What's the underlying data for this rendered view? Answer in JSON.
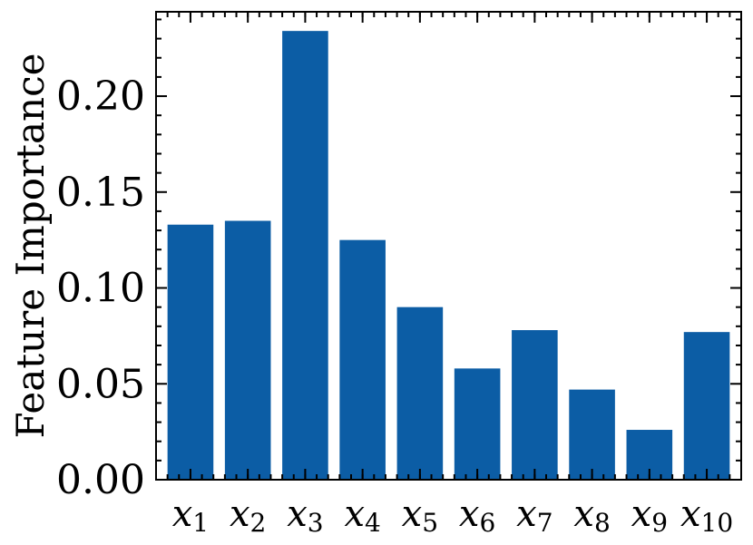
{
  "chart_data": {
    "type": "bar",
    "categories": [
      {
        "base": "x",
        "sub": "1"
      },
      {
        "base": "x",
        "sub": "2"
      },
      {
        "base": "x",
        "sub": "3"
      },
      {
        "base": "x",
        "sub": "4"
      },
      {
        "base": "x",
        "sub": "5"
      },
      {
        "base": "x",
        "sub": "6"
      },
      {
        "base": "x",
        "sub": "7"
      },
      {
        "base": "x",
        "sub": "8"
      },
      {
        "base": "x",
        "sub": "9"
      },
      {
        "base": "x",
        "sub": "10"
      }
    ],
    "values": [
      0.133,
      0.135,
      0.234,
      0.125,
      0.09,
      0.058,
      0.078,
      0.047,
      0.026,
      0.077
    ],
    "ylabel": "Feature Importance",
    "xlabel": "",
    "title": "",
    "ylim": [
      0,
      0.244
    ],
    "yticks": [
      "0.00",
      "0.05",
      "0.10",
      "0.15",
      "0.20"
    ],
    "ytick_values": [
      0,
      0.05,
      0.1,
      0.15,
      0.2
    ],
    "bar_color": "#0c5da5",
    "grid": false,
    "legend": "none"
  }
}
